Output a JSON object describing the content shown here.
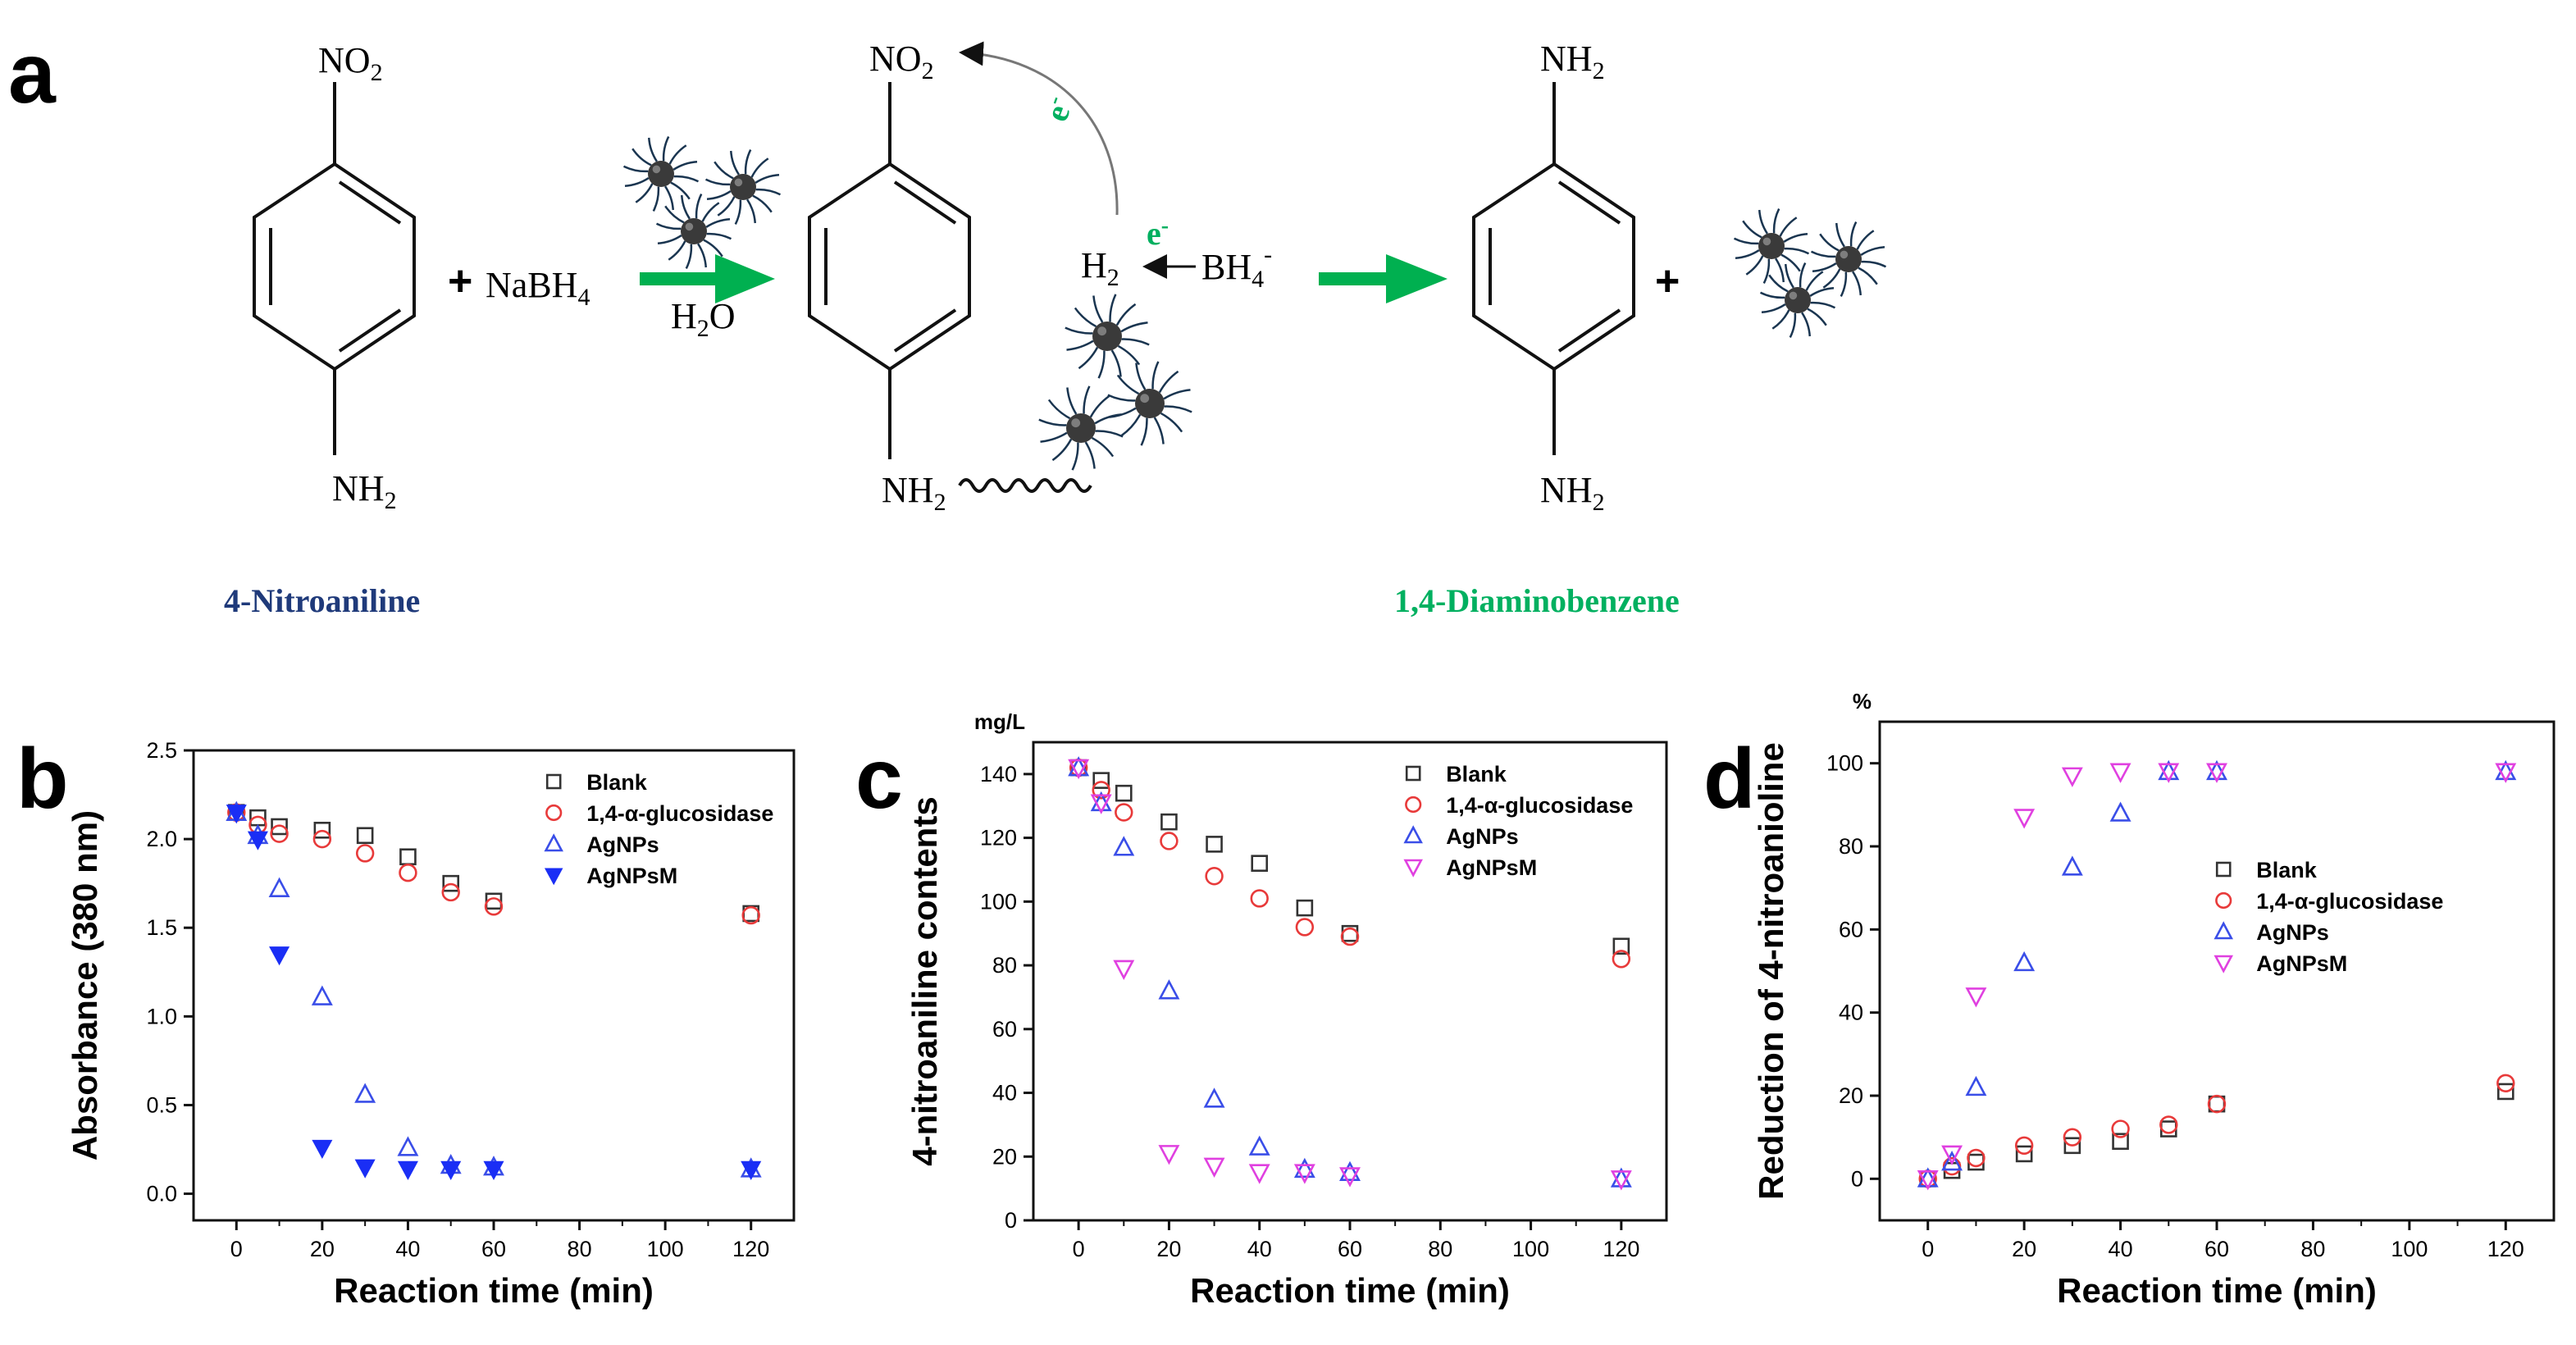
{
  "scheme": {
    "panel_label": "a",
    "reactant_top": "NO",
    "reactant_top_sub": "2",
    "reactant_bottom": "NH",
    "reactant_bottom_sub": "2",
    "reagent_plus": "+",
    "reagent": "NaBH",
    "reagent_sub": "4",
    "solvent": "H",
    "solvent_sub": "2",
    "solvent_tail": "O",
    "electron_top": "e",
    "electron_top_sup": "-",
    "electron_mid": "e",
    "electron_mid_sup": "-",
    "h2": "H",
    "h2_sub": "2",
    "bh4": "BH",
    "bh4_sub": "4",
    "bh4_sup": "-",
    "intermediate_top": "NO",
    "intermediate_top_sub": "2",
    "intermediate_bottom": "NH",
    "intermediate_bottom_sub": "2",
    "product_top": "NH",
    "product_top_sub": "2",
    "product_bottom": "NH",
    "product_bottom_sub": "2",
    "product_plus": "+",
    "reactant_name": "4-Nitroaniline",
    "product_name": "1,4-Diaminobenzene",
    "colors": {
      "reactant_name": "#1f3a7a",
      "product_name": "#00b060",
      "arrow": "#00b050",
      "particle": "#3a3a3a",
      "ligand": "#1a3550"
    }
  },
  "chart_data": [
    {
      "panel": "b",
      "type": "scatter",
      "ylabel": "Absorbance (380 nm)",
      "xlabel": "Reaction time (min)",
      "unit_label": "",
      "xlim": [
        -10,
        130
      ],
      "ylim": [
        -0.15,
        2.5
      ],
      "xticks": [
        0,
        20,
        40,
        60,
        80,
        100,
        120
      ],
      "yticks": [
        0.0,
        0.5,
        1.0,
        1.5,
        2.0,
        2.5
      ],
      "ytick_labels": [
        "0.0",
        "0.5",
        "1.0",
        "1.5",
        "2.0",
        "2.5"
      ],
      "legend_position": "top-right",
      "x": [
        0,
        5,
        10,
        20,
        30,
        40,
        50,
        60,
        120
      ],
      "series": [
        {
          "name": "Blank",
          "marker": "square-open",
          "color": "#333333",
          "values": [
            2.15,
            2.12,
            2.07,
            2.05,
            2.02,
            1.9,
            1.75,
            1.65,
            1.58
          ]
        },
        {
          "name": "1,4-α-glucosidase",
          "marker": "circle-open",
          "color": "#e83a3a",
          "values": [
            2.15,
            2.08,
            2.03,
            2.0,
            1.92,
            1.81,
            1.7,
            1.62,
            1.57
          ]
        },
        {
          "name": "AgNPs",
          "marker": "triangle-open",
          "color": "#3a4ee8",
          "values": [
            2.15,
            2.02,
            1.72,
            1.11,
            0.56,
            0.26,
            0.16,
            0.15,
            0.14
          ]
        },
        {
          "name": "AgNPsM",
          "marker": "triangle-down-filled",
          "color": "#1a2ef5",
          "values": [
            2.15,
            2.0,
            1.35,
            0.26,
            0.15,
            0.14,
            0.14,
            0.14,
            0.14
          ]
        }
      ]
    },
    {
      "panel": "c",
      "type": "scatter",
      "ylabel": "4-nitroaniline contents",
      "xlabel": "Reaction time (min)",
      "unit_label": "mg/L",
      "xlim": [
        -10,
        130
      ],
      "ylim": [
        0,
        150
      ],
      "xticks": [
        0,
        20,
        40,
        60,
        80,
        100,
        120
      ],
      "yticks": [
        0,
        20,
        40,
        60,
        80,
        100,
        120,
        140
      ],
      "ytick_labels": [
        "0",
        "20",
        "40",
        "60",
        "80",
        "100",
        "120",
        "140"
      ],
      "legend_position": "top-right",
      "x": [
        0,
        5,
        10,
        20,
        30,
        40,
        50,
        60,
        120
      ],
      "series": [
        {
          "name": "Blank",
          "marker": "square-open",
          "color": "#333333",
          "values": [
            142,
            138,
            134,
            125,
            118,
            112,
            98,
            90,
            86
          ]
        },
        {
          "name": "1,4-α-glucosidase",
          "marker": "circle-open",
          "color": "#e83a3a",
          "values": [
            142,
            135,
            128,
            119,
            108,
            101,
            92,
            89,
            82
          ]
        },
        {
          "name": "AgNPs",
          "marker": "triangle-open",
          "color": "#3a4ee8",
          "values": [
            142,
            131,
            117,
            72,
            38,
            23,
            16,
            15,
            13
          ]
        },
        {
          "name": "AgNPsM",
          "marker": "triangle-down-open",
          "color": "#e040e0",
          "values": [
            142,
            131,
            79,
            21,
            17,
            15,
            15,
            14,
            13
          ]
        }
      ]
    },
    {
      "panel": "d",
      "type": "scatter",
      "ylabel": "Reduction of 4-nitroanioline",
      "xlabel": "Reaction time (min)",
      "unit_label": "%",
      "xlim": [
        -10,
        130
      ],
      "ylim": [
        -10,
        110
      ],
      "xticks": [
        0,
        20,
        40,
        60,
        80,
        100,
        120
      ],
      "yticks": [
        0,
        20,
        40,
        60,
        80,
        100
      ],
      "ytick_labels": [
        "0",
        "20",
        "40",
        "60",
        "80",
        "100"
      ],
      "legend_position": "right-middle",
      "x": [
        0,
        5,
        10,
        20,
        30,
        40,
        50,
        60,
        120
      ],
      "series": [
        {
          "name": "Blank",
          "marker": "square-open",
          "color": "#333333",
          "values": [
            0,
            2,
            4,
            6,
            8,
            9,
            12,
            18,
            21
          ]
        },
        {
          "name": "1,4-α-glucosidase",
          "marker": "circle-open",
          "color": "#e83a3a",
          "values": [
            0,
            3,
            5,
            8,
            10,
            12,
            13,
            18,
            23
          ]
        },
        {
          "name": "AgNPs",
          "marker": "triangle-open",
          "color": "#3a4ee8",
          "values": [
            0,
            4,
            22,
            52,
            75,
            88,
            98,
            98,
            98
          ]
        },
        {
          "name": "AgNPsM",
          "marker": "triangle-down-open",
          "color": "#e040e0",
          "values": [
            0,
            6,
            44,
            87,
            97,
            98,
            98,
            98,
            98
          ]
        }
      ]
    }
  ]
}
